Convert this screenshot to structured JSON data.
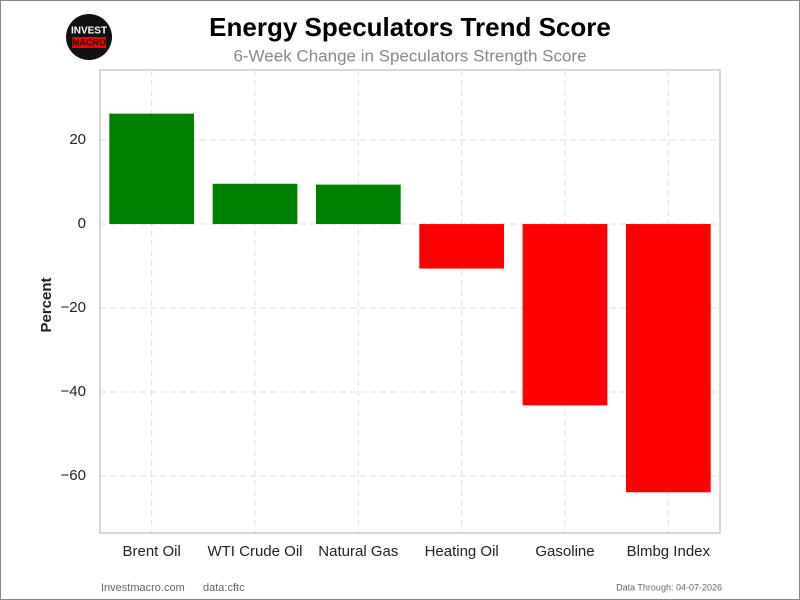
{
  "chart_data": {
    "type": "bar",
    "title": "Energy Speculators Trend Score",
    "subtitle": "6-Week Change in Speculators Strength Score",
    "y_label": "Percent",
    "logo": [
      "INVEST",
      "MACRO"
    ],
    "footer_left": "Investmacro.com",
    "footer_source": "data:cftc",
    "footer_right": "Data Through: 04-07-2026",
    "categories": [
      "Brent Oil",
      "WTI Crude Oil",
      "Natural Gas",
      "Heating Oil",
      "Gasoline",
      "Blmbg Index"
    ],
    "values": [
      26.3,
      9.6,
      9.4,
      -10.6,
      -43.2,
      -63.9
    ],
    "colors": [
      "#008000",
      "#008000",
      "#008000",
      "#ff0000",
      "#ff0000",
      "#ff0000"
    ],
    "ylim": [
      -73.6,
      36.7
    ],
    "yticks": [
      {
        "value": -60,
        "label": "−60"
      },
      {
        "value": -40,
        "label": "−40"
      },
      {
        "value": -20,
        "label": "−20"
      },
      0,
      20
    ],
    "grid": true
  }
}
